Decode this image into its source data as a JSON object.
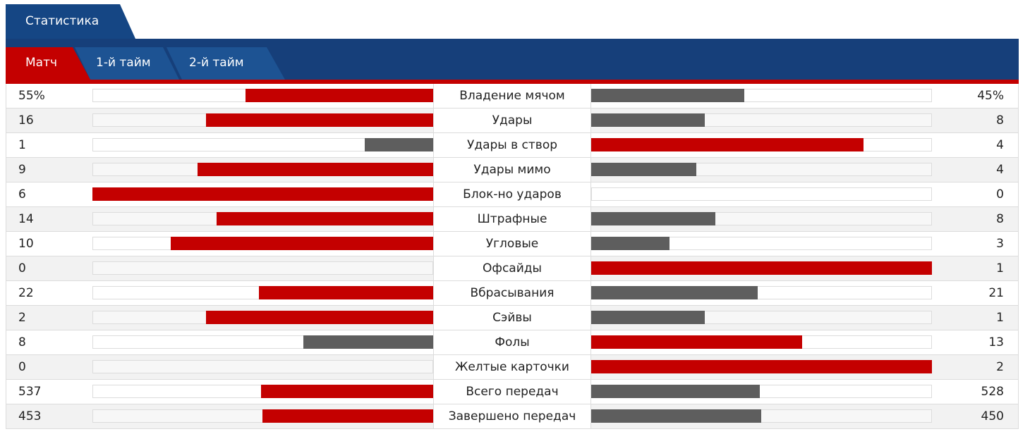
{
  "title_tab": "Статистика",
  "subtabs": [
    {
      "label": "Матч",
      "active": true
    },
    {
      "label": "1-й тайм",
      "active": false
    },
    {
      "label": "2-й тайм",
      "active": false
    }
  ],
  "colors": {
    "winner": "#c40000",
    "loser": "#5e5e5e",
    "header": "#163f7a"
  },
  "stats": [
    {
      "label": "Владение мячом",
      "home": "55%",
      "away": "45%",
      "home_value": 55,
      "away_value": 45
    },
    {
      "label": "Удары",
      "home": "16",
      "away": "8",
      "home_value": 16,
      "away_value": 8
    },
    {
      "label": "Удары в створ",
      "home": "1",
      "away": "4",
      "home_value": 1,
      "away_value": 4
    },
    {
      "label": "Удары мимо",
      "home": "9",
      "away": "4",
      "home_value": 9,
      "away_value": 4
    },
    {
      "label": "Блок-но ударов",
      "home": "6",
      "away": "0",
      "home_value": 6,
      "away_value": 0
    },
    {
      "label": "Штрафные",
      "home": "14",
      "away": "8",
      "home_value": 14,
      "away_value": 8
    },
    {
      "label": "Угловые",
      "home": "10",
      "away": "3",
      "home_value": 10,
      "away_value": 3
    },
    {
      "label": "Офсайды",
      "home": "0",
      "away": "1",
      "home_value": 0,
      "away_value": 1
    },
    {
      "label": "Вбрасывания",
      "home": "22",
      "away": "21",
      "home_value": 22,
      "away_value": 21
    },
    {
      "label": "Сэйвы",
      "home": "2",
      "away": "1",
      "home_value": 2,
      "away_value": 1
    },
    {
      "label": "Фолы",
      "home": "8",
      "away": "13",
      "home_value": 8,
      "away_value": 13
    },
    {
      "label": "Желтые карточки",
      "home": "0",
      "away": "2",
      "home_value": 0,
      "away_value": 2
    },
    {
      "label": "Всего передач",
      "home": "537",
      "away": "528",
      "home_value": 537,
      "away_value": 528
    },
    {
      "label": "Завершено передач",
      "home": "453",
      "away": "450",
      "home_value": 453,
      "away_value": 450
    }
  ]
}
